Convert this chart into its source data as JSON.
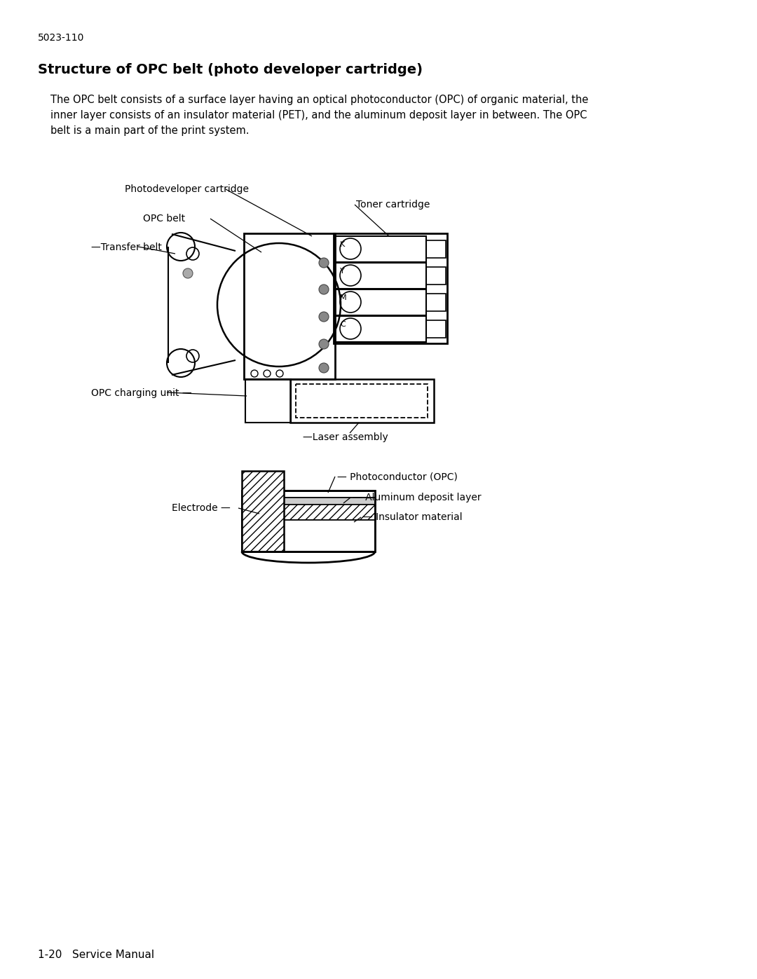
{
  "page_num": "5023-110",
  "title": "Structure of OPC belt (photo developer cartridge)",
  "body_line1": "The OPC belt consists of a surface layer having an optical photoconductor (OPC) of organic material, the",
  "body_line2": "inner layer consists of an insulator material (PET), and the aluminum deposit layer in between. The OPC",
  "body_line3": "belt is a main part of the print system.",
  "footer": "1-20   Service Manual",
  "bg": "#ffffff",
  "lc": "#000000",
  "label_photodeveloper": "Photodeveloper cartridge",
  "label_toner": "Toner cartridge",
  "label_opc_belt": "OPC belt",
  "label_transfer_belt": "Transfer belt",
  "label_opc_charge": "OPC charging unit",
  "label_laser": "Laser assembly",
  "label_electrode": "Electrode",
  "label_photoconductor": "Photoconductor (OPC)",
  "label_aluminum": "Aluminum deposit layer",
  "label_insulator": "Insulator material",
  "toner_letters": [
    "K",
    "Y",
    "M",
    "C"
  ]
}
